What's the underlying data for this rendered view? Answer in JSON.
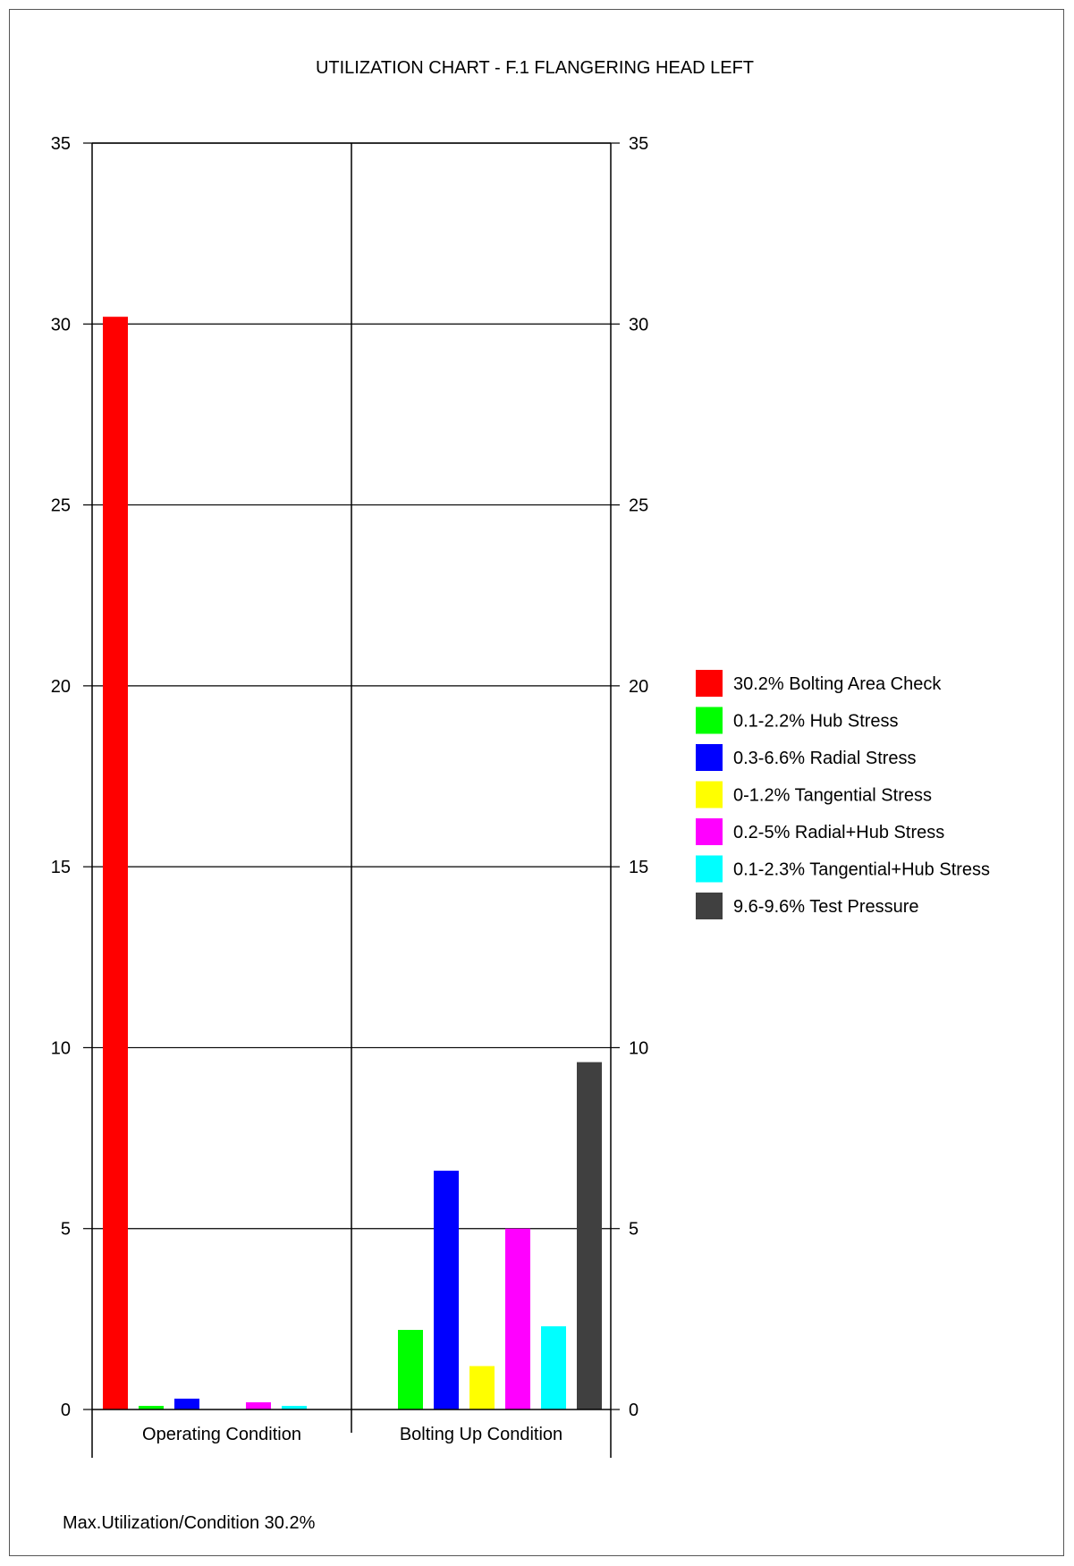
{
  "chart_data": {
    "type": "bar",
    "title": "UTILIZATION CHART - F.1 FLANGERING HEAD LEFT",
    "xlabel": "",
    "ylabel": "",
    "ylim": [
      0,
      35
    ],
    "y_ticks": [
      0,
      5,
      10,
      15,
      20,
      25,
      30,
      35
    ],
    "grid": true,
    "legend_position": "right",
    "categories": [
      "Operating Condition",
      "Bolting Up Condition"
    ],
    "series": [
      {
        "name": "30.2% Bolting Area Check",
        "color": "#ff0000",
        "values": [
          30.2,
          null
        ]
      },
      {
        "name": "0.1-2.2% Hub Stress",
        "color": "#00ff00",
        "values": [
          0.1,
          2.2
        ]
      },
      {
        "name": "0.3-6.6% Radial Stress",
        "color": "#0000ff",
        "values": [
          0.3,
          6.6
        ]
      },
      {
        "name": "0-1.2% Tangential Stress",
        "color": "#ffff00",
        "values": [
          0,
          1.2
        ]
      },
      {
        "name": "0.2-5% Radial+Hub Stress",
        "color": "#ff00ff",
        "values": [
          0.2,
          5
        ]
      },
      {
        "name": "0.1-2.3% Tangential+Hub Stress",
        "color": "#00ffff",
        "values": [
          0.1,
          2.3
        ]
      },
      {
        "name": "9.6-9.6% Test Pressure",
        "color": "#404040",
        "values": [
          null,
          9.6
        ]
      }
    ]
  },
  "footer": {
    "note": "Max.Utilization/Condition 30.2%"
  }
}
